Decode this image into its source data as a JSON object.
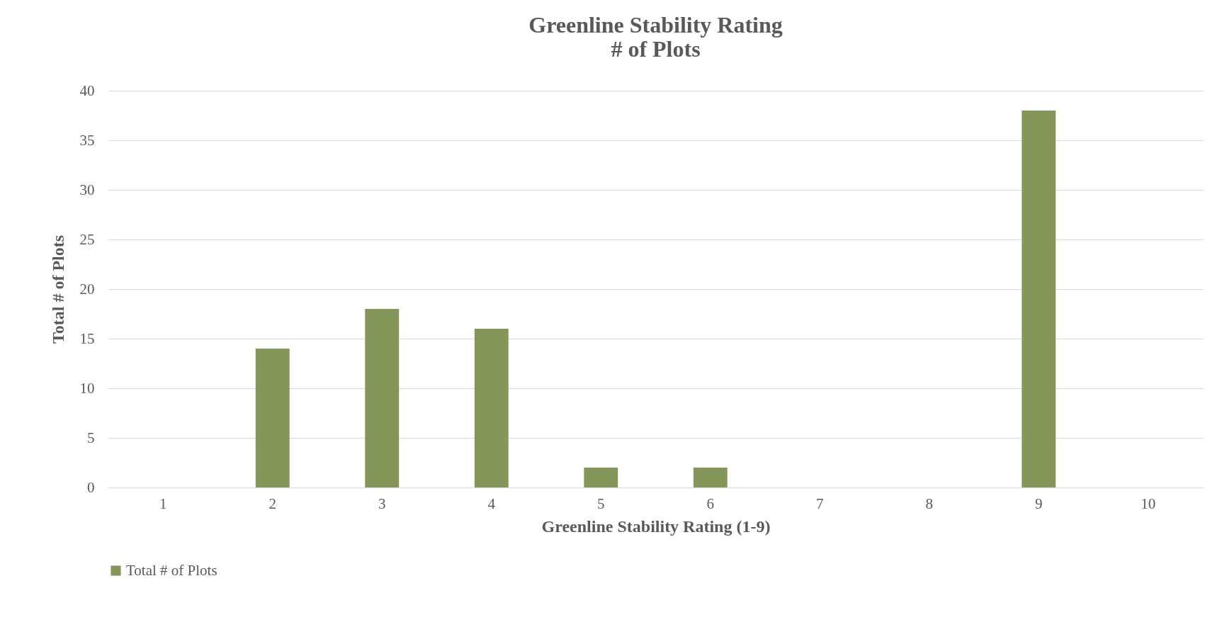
{
  "chart_data": {
    "type": "bar",
    "title": "Greenline Stability Rating\n# of Plots",
    "xlabel": "Greenline Stability Rating (1-9)",
    "ylabel": "Total # of Plots",
    "categories": [
      "1",
      "2",
      "3",
      "4",
      "5",
      "6",
      "7",
      "8",
      "9",
      "10"
    ],
    "series": [
      {
        "name": "Total # of Plots",
        "color": "#84965a",
        "values": [
          0,
          14,
          18,
          16,
          2,
          2,
          0,
          0,
          38,
          0
        ]
      }
    ],
    "ylim": [
      0,
      40
    ],
    "yticks": [
      0,
      5,
      10,
      15,
      20,
      25,
      30,
      35,
      40
    ],
    "grid": "y",
    "legend": "bottom"
  }
}
